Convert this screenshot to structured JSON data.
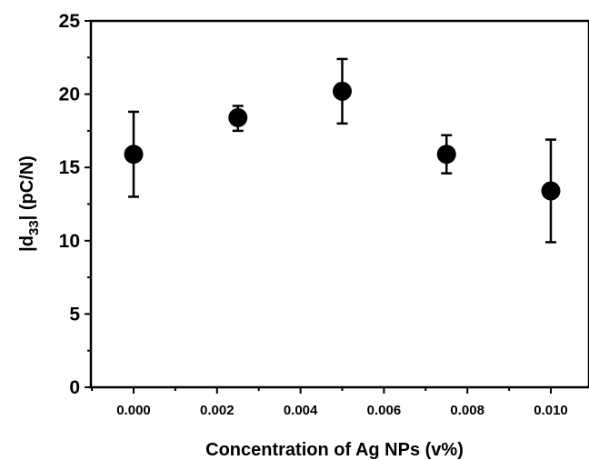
{
  "chart_data": {
    "type": "scatter",
    "xlabel": "Concentration of Ag NPs (v%)",
    "ylabel_prefix": "|d",
    "ylabel_subscript": "33",
    "ylabel_suffix": "| (pC/N)",
    "xlim": [
      -0.001,
      0.011
    ],
    "ylim": [
      0,
      25
    ],
    "x_ticks": [
      "0.000",
      "0.002",
      "0.004",
      "0.006",
      "0.008",
      "0.010"
    ],
    "y_ticks": [
      "0",
      "5",
      "10",
      "15",
      "20",
      "25"
    ],
    "marker": "filled-circle",
    "marker_color": "#000000",
    "points": [
      {
        "x": 0.0,
        "y": 15.9,
        "err_low": 13.0,
        "err_high": 18.8
      },
      {
        "x": 0.0025,
        "y": 18.4,
        "err_low": 17.5,
        "err_high": 19.2
      },
      {
        "x": 0.005,
        "y": 20.2,
        "err_low": 18.0,
        "err_high": 22.4
      },
      {
        "x": 0.0075,
        "y": 15.9,
        "err_low": 14.6,
        "err_high": 17.2
      },
      {
        "x": 0.01,
        "y": 13.4,
        "err_low": 9.9,
        "err_high": 16.9
      }
    ]
  }
}
